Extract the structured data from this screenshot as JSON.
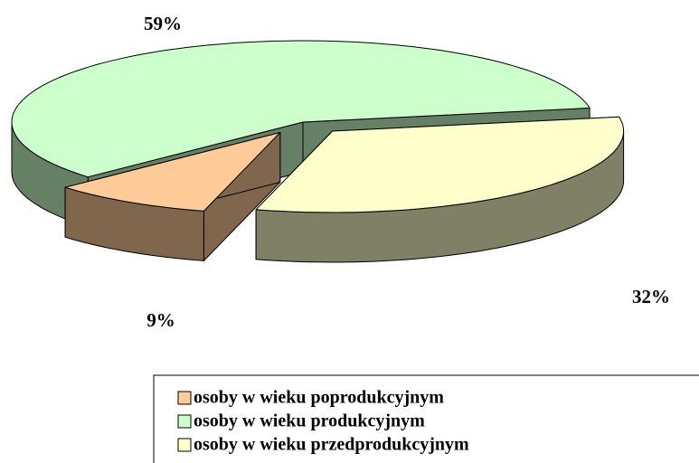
{
  "chart_data": {
    "type": "pie",
    "three_d": true,
    "categories": [
      "osoby w wieku poprodukcyjnym",
      "osoby w wieku produkcyjnym",
      "osoby w wieku przedprodukcyjnym"
    ],
    "values": [
      9,
      59,
      32
    ],
    "value_labels": [
      "9%",
      "59%",
      "32%"
    ],
    "colors": [
      "#ffcc99",
      "#ccffcc",
      "#ffffcc"
    ],
    "legend": "bottom"
  }
}
